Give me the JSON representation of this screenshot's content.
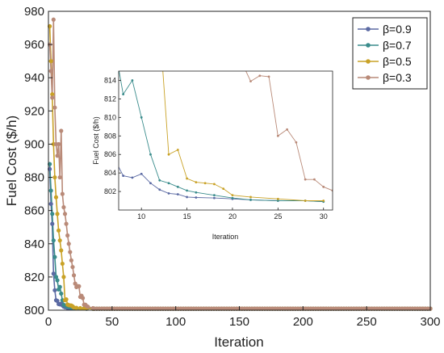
{
  "chart_data": [
    {
      "type": "line",
      "xlabel": "Iteration",
      "ylabel": "Fuel Cost ($/h)",
      "xlim": [
        0,
        300
      ],
      "ylim": [
        800,
        980
      ],
      "xticks": [
        0,
        50,
        100,
        150,
        200,
        250,
        300
      ],
      "yticks": [
        800,
        820,
        840,
        860,
        880,
        900,
        920,
        940,
        960,
        980
      ],
      "legend_position": "top-right",
      "series": [
        {
          "name": "β=0.9",
          "color": "#5b6aa3",
          "x": [
            1,
            2,
            3,
            4,
            5,
            6,
            7,
            8,
            9,
            10,
            11,
            12,
            13,
            14,
            15,
            16,
            18,
            20,
            22,
            25,
            28,
            30,
            35,
            40,
            50,
            100,
            150,
            200,
            250,
            300
          ],
          "y": [
            885,
            864,
            852,
            822,
            812,
            806,
            805.6,
            803.7,
            803.5,
            803.9,
            802.9,
            802.2,
            801.8,
            801.7,
            801.4,
            801.35,
            801.3,
            801.2,
            801.1,
            801.0,
            801.0,
            800.9,
            800.9,
            800.9,
            800.9,
            800.9,
            800.9,
            800.9,
            800.9,
            800.9
          ]
        },
        {
          "name": "β=0.7",
          "color": "#3a8c8c",
          "x": [
            1,
            2,
            3,
            4,
            5,
            6,
            7,
            8,
            9,
            10,
            11,
            12,
            13,
            14,
            15,
            16,
            18,
            20,
            22,
            25,
            28,
            30,
            35,
            40,
            50,
            100,
            150,
            200,
            250,
            300
          ],
          "y": [
            888,
            872,
            858,
            842,
            832,
            820,
            818,
            812.5,
            814,
            810,
            806,
            803.2,
            802.9,
            802.5,
            802.1,
            801.9,
            801.6,
            801.3,
            801.1,
            801.0,
            801.0,
            800.9,
            800.9,
            800.9,
            800.9,
            800.9,
            800.9,
            800.9,
            800.9,
            800.9
          ]
        },
        {
          "name": "β=0.5",
          "color": "#c9a227",
          "x": [
            1,
            2,
            3,
            4,
            5,
            6,
            7,
            8,
            9,
            10,
            11,
            12,
            13,
            14,
            15,
            16,
            17,
            18,
            19,
            20,
            22,
            25,
            28,
            30,
            35,
            40,
            50,
            100,
            150,
            200,
            250,
            300
          ],
          "y": [
            971,
            950,
            930,
            900,
            880,
            868,
            858,
            848,
            842,
            836,
            828,
            820,
            806,
            806.5,
            803.4,
            803.0,
            802.9,
            802.8,
            802.3,
            801.6,
            801.4,
            801.2,
            801.0,
            801.0,
            800.9,
            800.9,
            800.9,
            800.9,
            800.9,
            800.9,
            800.9,
            800.9
          ]
        },
        {
          "name": "β=0.3",
          "color": "#b98a78",
          "x": [
            1,
            2,
            3,
            4,
            5,
            6,
            7,
            8,
            9,
            10,
            11,
            12,
            13,
            14,
            15,
            16,
            17,
            18,
            19,
            20,
            21,
            22,
            23,
            24,
            25,
            26,
            27,
            28,
            29,
            30,
            31,
            35,
            40,
            50,
            100,
            150,
            200,
            250,
            300
          ],
          "y": [
            960,
            944,
            928,
            975,
            922,
            900,
            893,
            900,
            880,
            908,
            870,
            862,
            858,
            852,
            845,
            840,
            835,
            830,
            826,
            821,
            816,
            813.9,
            814.5,
            814.4,
            808,
            808.7,
            807.3,
            803.3,
            803.3,
            802.5,
            802.1,
            801.2,
            800.9,
            800.9,
            800.9,
            800.9,
            800.9,
            800.9,
            800.9
          ]
        }
      ]
    },
    {
      "type": "line",
      "inset": true,
      "xlabel": "Iteration",
      "ylabel": "Fuel Cost ($/h)",
      "xlim": [
        7.5,
        31
      ],
      "ylim": [
        800,
        815
      ],
      "xticks": [
        10,
        15,
        20,
        25,
        30
      ],
      "yticks": [
        802,
        804,
        806,
        808,
        810,
        812,
        814
      ]
    }
  ]
}
